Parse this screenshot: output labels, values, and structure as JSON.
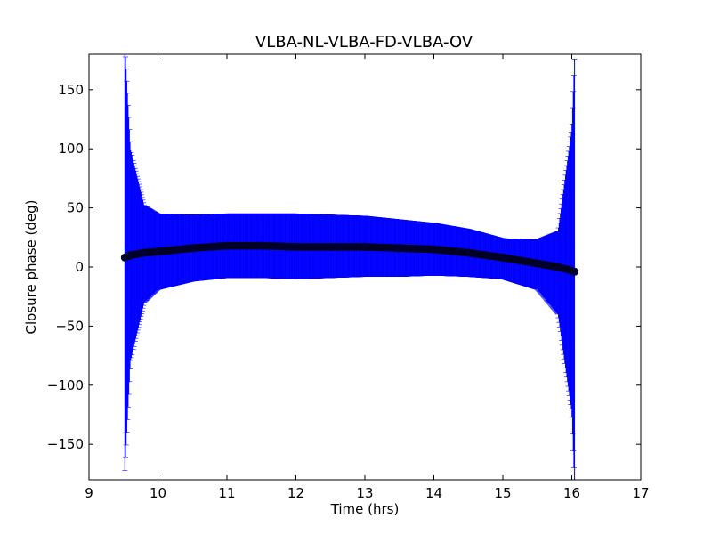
{
  "chart_data": {
    "type": "scatter",
    "title": "VLBA-NL-VLBA-FD-VLBA-OV",
    "xlabel": "Time (hrs)",
    "ylabel": "Closure phase (deg)",
    "xlim": [
      9,
      17
    ],
    "ylim": [
      -180,
      180
    ],
    "xticks": [
      9,
      10,
      11,
      12,
      13,
      14,
      15,
      16,
      17
    ],
    "xtick_labels": [
      "9",
      "10",
      "11",
      "12",
      "13",
      "14",
      "15",
      "16",
      "17"
    ],
    "yticks": [
      -150,
      -100,
      -50,
      0,
      50,
      100,
      150
    ],
    "ytick_labels": [
      "−150",
      "−100",
      "−50",
      "0",
      "50",
      "100",
      "150"
    ],
    "grid": false,
    "legend": "none",
    "colors": {
      "points": "#000033",
      "errorbars": "#0000ff",
      "axes": "#000000"
    },
    "series": [
      {
        "x": [
          9.52,
          9.6,
          9.8,
          10.0,
          10.5,
          11.0,
          11.5,
          12.0,
          12.5,
          13.0,
          13.5,
          14.0,
          14.5,
          15.0,
          15.5,
          15.8,
          16.0,
          16.04
        ],
        "y": [
          8,
          10,
          12,
          13,
          16,
          18,
          18,
          17,
          17,
          17,
          16,
          15,
          12,
          8,
          3,
          0,
          -3,
          -4
        ],
        "err_upper": [
          180,
          90,
          40,
          32,
          28,
          27,
          27,
          28,
          27,
          26,
          24,
          22,
          20,
          16,
          20,
          30,
          120,
          180
        ],
        "err_lower": [
          180,
          90,
          42,
          32,
          28,
          27,
          27,
          27,
          26,
          25,
          24,
          22,
          20,
          18,
          22,
          40,
          120,
          180
        ]
      }
    ]
  }
}
